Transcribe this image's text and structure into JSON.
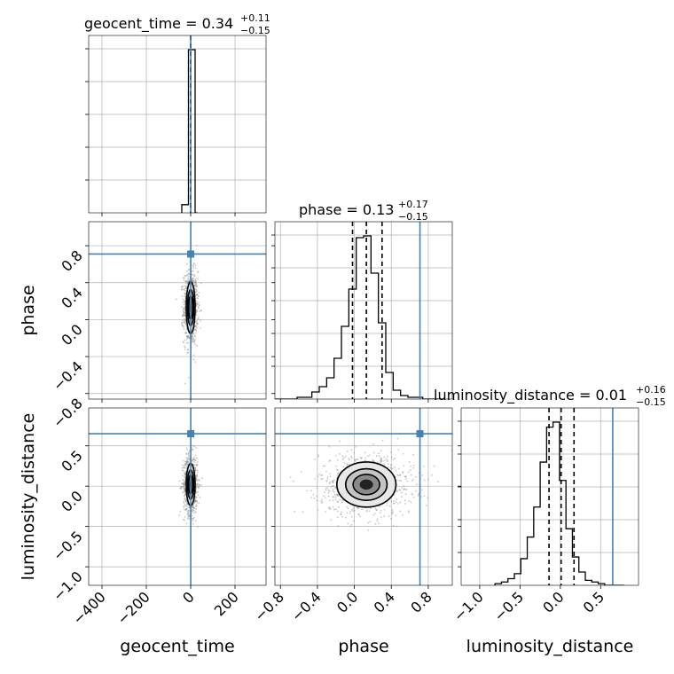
{
  "chart_data": {
    "type": "corner",
    "parameters": [
      "geocent_time",
      "phase",
      "luminosity_distance"
    ],
    "axis_labels": {
      "geocent_time": "geocent_time",
      "phase": "phase",
      "luminosity_distance": "luminosity_distance"
    },
    "titles": [
      {
        "param": "geocent_time",
        "name": "geocent_time",
        "median": "0.34",
        "upper": "+0.11",
        "lower": "−0.15"
      },
      {
        "param": "phase",
        "name": "phase",
        "median": "0.13",
        "upper": "+0.17",
        "lower": "−0.15"
      },
      {
        "param": "luminosity_distance",
        "name": "luminosity_distance",
        "median": "0.01",
        "upper": "+0.16",
        "lower": "−0.15"
      }
    ],
    "ranges": {
      "geocent_time": [
        -460,
        340
      ],
      "phase": [
        -0.86,
        1.06
      ],
      "luminosity_distance": [
        -1.23,
        0.97
      ]
    },
    "ticks": {
      "geocent_time": [
        {
          "v": -400,
          "label": "−400"
        },
        {
          "v": -200,
          "label": "−200"
        },
        {
          "v": 0,
          "label": "0"
        },
        {
          "v": 200,
          "label": "200"
        }
      ],
      "phase": [
        {
          "v": -0.8,
          "label": "−0.8"
        },
        {
          "v": -0.4,
          "label": "−0.4"
        },
        {
          "v": 0.0,
          "label": "0.0"
        },
        {
          "v": 0.4,
          "label": "0.4"
        },
        {
          "v": 0.8,
          "label": "0.8"
        }
      ],
      "luminosity_distance": [
        {
          "v": -1.0,
          "label": "−1.0"
        },
        {
          "v": -0.5,
          "label": "−0.5"
        },
        {
          "v": 0.0,
          "label": "0.0"
        },
        {
          "v": 0.5,
          "label": "0.5"
        }
      ]
    },
    "truths": {
      "geocent_time": 0.34,
      "phase": 0.71,
      "luminosity_distance": 0.65
    },
    "truth_color": "#4682b4",
    "quantiles": {
      "geocent_time": [
        0.19,
        0.34,
        0.45
      ],
      "phase": [
        -0.02,
        0.13,
        0.3
      ],
      "luminosity_distance": [
        -0.14,
        0.01,
        0.17
      ]
    },
    "histograms": {
      "geocent_time": {
        "edges": [
          -40,
          -10,
          0,
          20,
          30
        ],
        "counts": [
          0.05,
          1.0,
          1.0,
          0.0
        ]
      },
      "phase": {
        "edges": [
          -0.86,
          -0.78,
          -0.7,
          -0.62,
          -0.54,
          -0.46,
          -0.38,
          -0.3,
          -0.22,
          -0.14,
          -0.06,
          0.02,
          0.1,
          0.18,
          0.26,
          0.34,
          0.42,
          0.5,
          0.58,
          0.66,
          0.74,
          0.82,
          0.9,
          0.98
        ],
        "counts": [
          0.0,
          0.0,
          0.0,
          0.01,
          0.01,
          0.04,
          0.07,
          0.12,
          0.23,
          0.41,
          0.62,
          0.91,
          0.92,
          0.71,
          0.43,
          0.15,
          0.05,
          0.02,
          0.01,
          0.01,
          0.0,
          0.0,
          0.0
        ]
      },
      "luminosity_distance": {
        "edges": [
          -0.81,
          -0.73,
          -0.65,
          -0.57,
          -0.49,
          -0.41,
          -0.33,
          -0.25,
          -0.17,
          -0.09,
          -0.01,
          0.07,
          0.15,
          0.23,
          0.31,
          0.39,
          0.47,
          0.55,
          0.63,
          0.71,
          0.79
        ],
        "counts": [
          0.01,
          0.02,
          0.04,
          0.07,
          0.16,
          0.29,
          0.47,
          0.74,
          0.95,
          0.98,
          0.63,
          0.34,
          0.17,
          0.08,
          0.03,
          0.02,
          0.01,
          0.0,
          0.0,
          0.0
        ]
      }
    },
    "posterior_2d": {
      "phase_vs_geocent_time": {
        "center": [
          0.0,
          0.13
        ],
        "sigma": [
          10,
          0.14
        ]
      },
      "luminosity_distance_vs_geocent_time": {
        "center": [
          0.0,
          0.02
        ],
        "sigma": [
          10,
          0.13
        ]
      },
      "luminosity_distance_vs_phase": {
        "center": [
          0.13,
          0.02
        ],
        "sigma": [
          0.16,
          0.14
        ]
      }
    }
  }
}
